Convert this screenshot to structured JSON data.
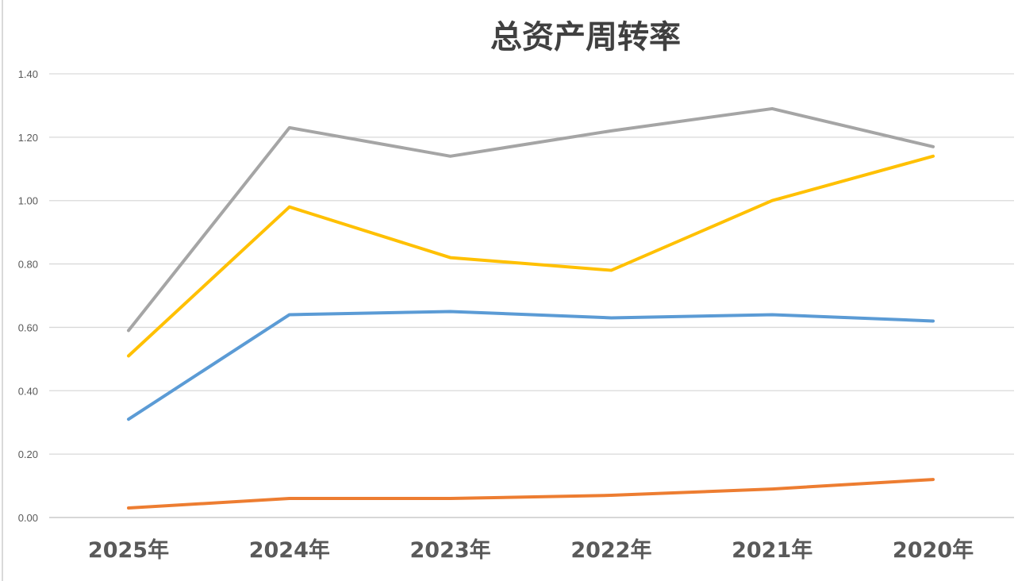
{
  "chart_data": {
    "type": "line",
    "title": "总资产周转率",
    "categories": [
      "2025年",
      "2024年",
      "2023年",
      "2022年",
      "2021年",
      "2020年"
    ],
    "ylim": [
      0,
      1.4
    ],
    "yticks": [
      "0.00",
      "0.20",
      "0.40",
      "0.60",
      "0.80",
      "1.00",
      "1.20",
      "1.40"
    ],
    "grid": true,
    "legend": "none",
    "series": [
      {
        "color": "#5b9bd5",
        "values": [
          0.31,
          0.64,
          0.65,
          0.63,
          0.64,
          0.62
        ]
      },
      {
        "color": "#ed7d31",
        "values": [
          0.03,
          0.06,
          0.06,
          0.07,
          0.09,
          0.12
        ]
      },
      {
        "color": "#a5a5a5",
        "values": [
          0.59,
          1.23,
          1.14,
          1.22,
          1.29,
          1.17
        ]
      },
      {
        "color": "#ffc000",
        "values": [
          0.51,
          0.98,
          0.82,
          0.78,
          1.0,
          1.14
        ]
      }
    ]
  }
}
